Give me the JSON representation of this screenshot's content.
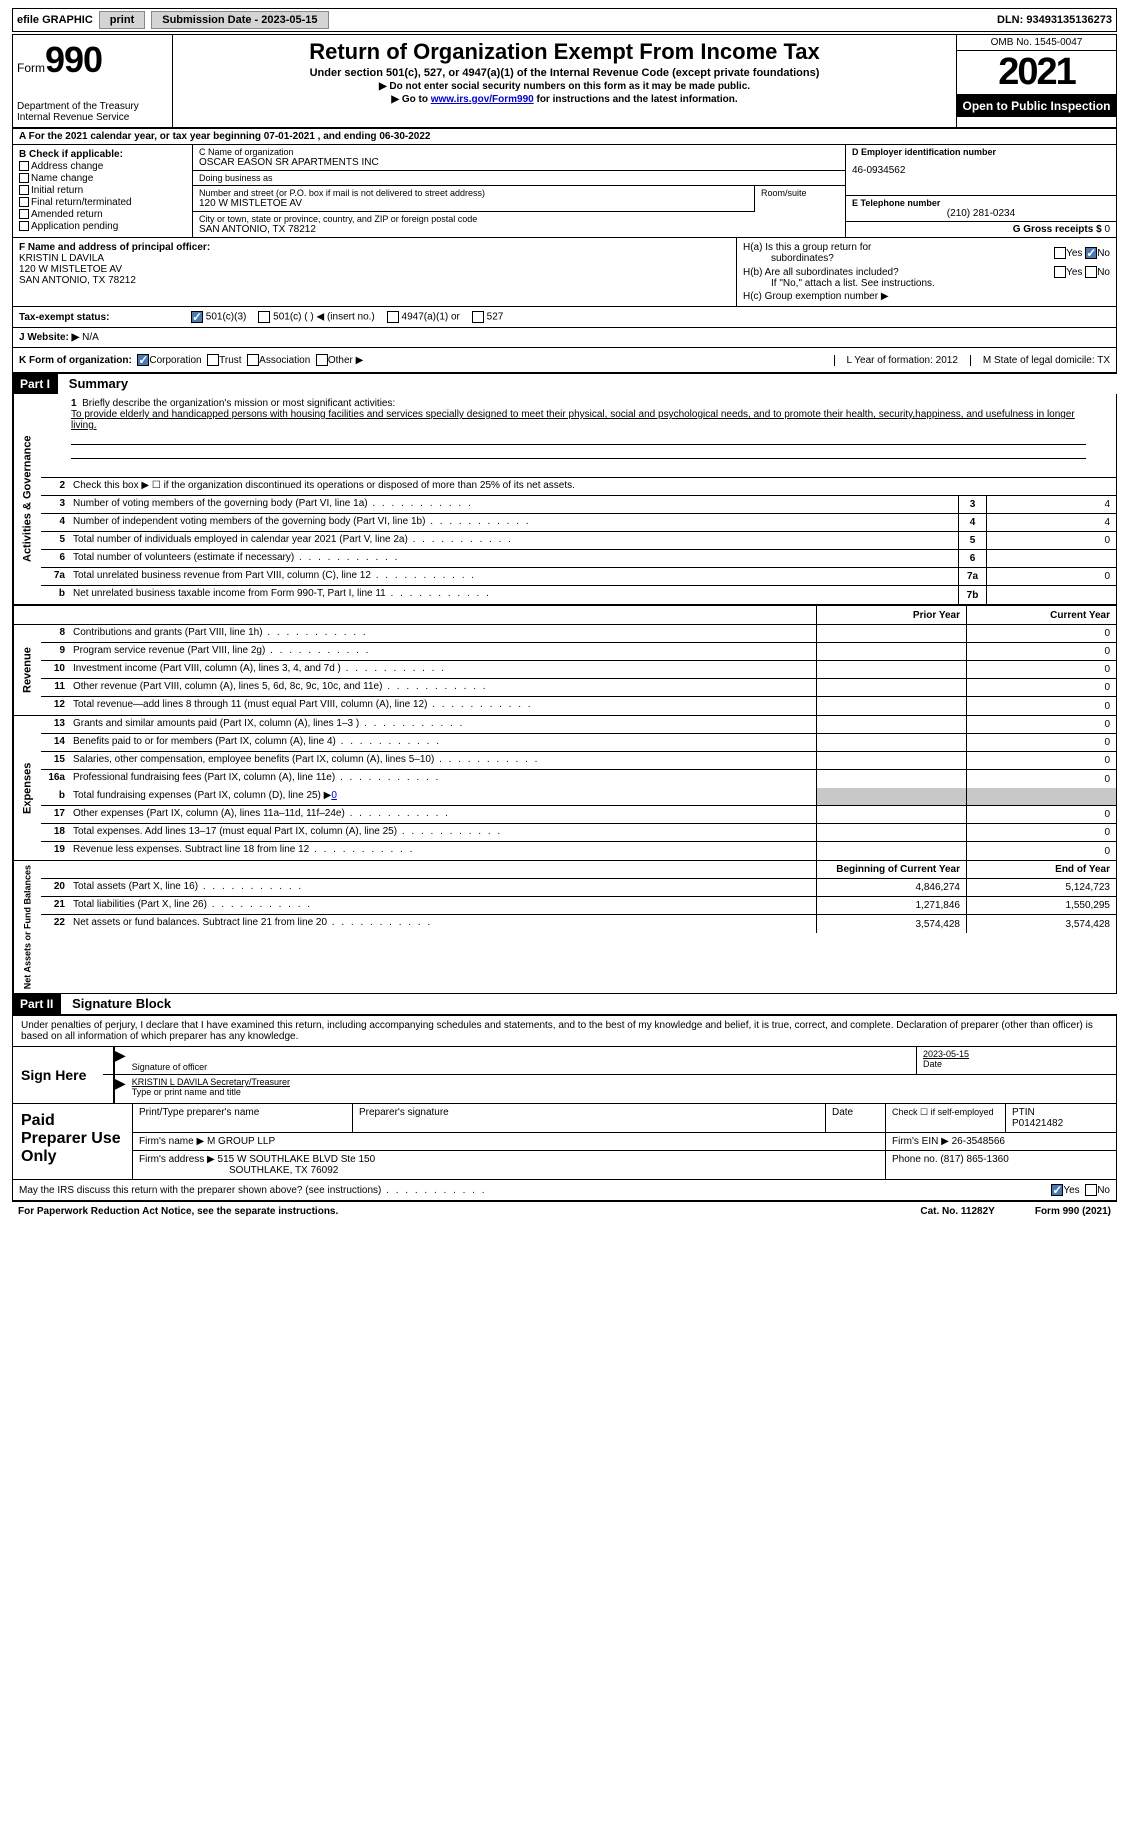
{
  "toolbar": {
    "efile": "efile GRAPHIC",
    "print": "print",
    "sub_label": "Submission Date - 2023-05-15",
    "dln": "DLN: 93493135136273"
  },
  "header": {
    "form_label": "Form",
    "form_no": "990",
    "dept": "Department of the Treasury\nInternal Revenue Service",
    "title": "Return of Organization Exempt From Income Tax",
    "sub": "Under section 501(c), 527, or 4947(a)(1) of the Internal Revenue Code (except private foundations)",
    "note1": "▶ Do not enter social security numbers on this form as it may be made public.",
    "note2_pre": "▶ Go to ",
    "note2_link": "www.irs.gov/Form990",
    "note2_post": " for instructions and the latest information.",
    "omb": "OMB No. 1545-0047",
    "year": "2021",
    "open": "Open to Public Inspection"
  },
  "row_a": "A For the 2021 calendar year, or tax year beginning 07-01-2021   , and ending 06-30-2022",
  "col_b": {
    "hdr": "B Check if applicable:",
    "items": [
      "Address change",
      "Name change",
      "Initial return",
      "Final return/terminated",
      "Amended return",
      "Application pending"
    ]
  },
  "col_c": {
    "name_lbl": "C Name of organization",
    "name": "OSCAR EASON SR APARTMENTS INC",
    "dba_lbl": "Doing business as",
    "addr_lbl": "Number and street (or P.O. box if mail is not delivered to street address)",
    "addr": "120 W MISTLETOE AV",
    "room_lbl": "Room/suite",
    "city_lbl": "City or town, state or province, country, and ZIP or foreign postal code",
    "city": "SAN ANTONIO, TX  78212"
  },
  "col_d": {
    "lbl": "D Employer identification number",
    "val": "46-0934562"
  },
  "col_e": {
    "lbl": "E Telephone number",
    "val": "(210) 281-0234"
  },
  "col_g": {
    "lbl": "G Gross receipts $",
    "val": "0"
  },
  "col_f": {
    "lbl": "F  Name and address of principal officer:",
    "name": "KRISTIN L DAVILA",
    "addr1": "120 W MISTLETOE AV",
    "addr2": "SAN ANTONIO, TX  78212"
  },
  "col_h": {
    "ha1": "H(a)  Is this a group return for",
    "ha2": "subordinates?",
    "hb1": "H(b)  Are all subordinates included?",
    "hb2": "If \"No,\" attach a list. See instructions.",
    "hc": "H(c)  Group exemption number ▶",
    "yes": "Yes",
    "no": "No"
  },
  "tax": {
    "lbl": "Tax-exempt status:",
    "o1": "501(c)(3)",
    "o2": "501(c) (  ) ◀ (insert no.)",
    "o3": "4947(a)(1) or",
    "o4": "527"
  },
  "row_j": {
    "lbl": "J   Website: ▶",
    "val": "N/A"
  },
  "row_k": {
    "lbl": "K Form of organization:",
    "o1": "Corporation",
    "o2": "Trust",
    "o3": "Association",
    "o4": "Other ▶",
    "l": "L Year of formation: 2012",
    "m": "M State of legal domicile: TX"
  },
  "part1": {
    "hdr": "Part I",
    "title": "Summary",
    "side_ag": "Activities & Governance",
    "line1_lbl": "Briefly describe the organization's mission or most significant activities:",
    "line1_txt": "To provide elderly and handicapped persons with housing facilities and services specially designed to meet their physical, social and psychological needs, and to promote their health, security,happiness, and usefulness in longer living.",
    "line2": "Check this box ▶ ☐  if the organization discontinued its operations or disposed of more than 25% of its net assets.",
    "lines_ag": [
      {
        "n": "3",
        "t": "Number of voting members of the governing body (Part VI, line 1a)",
        "b": "3",
        "v": "4"
      },
      {
        "n": "4",
        "t": "Number of independent voting members of the governing body (Part VI, line 1b)",
        "b": "4",
        "v": "4"
      },
      {
        "n": "5",
        "t": "Total number of individuals employed in calendar year 2021 (Part V, line 2a)",
        "b": "5",
        "v": "0"
      },
      {
        "n": "6",
        "t": "Total number of volunteers (estimate if necessary)",
        "b": "6",
        "v": ""
      },
      {
        "n": "7a",
        "t": "Total unrelated business revenue from Part VIII, column (C), line 12",
        "b": "7a",
        "v": "0"
      },
      {
        "n": "b",
        "t": "Net unrelated business taxable income from Form 990-T, Part I, line 11",
        "b": "7b",
        "v": ""
      }
    ],
    "py": "Prior Year",
    "cy": "Current Year",
    "side_rev": "Revenue",
    "lines_rev": [
      {
        "n": "8",
        "t": "Contributions and grants (Part VIII, line 1h)",
        "p": "",
        "c": "0"
      },
      {
        "n": "9",
        "t": "Program service revenue (Part VIII, line 2g)",
        "p": "",
        "c": "0"
      },
      {
        "n": "10",
        "t": "Investment income (Part VIII, column (A), lines 3, 4, and 7d )",
        "p": "",
        "c": "0"
      },
      {
        "n": "11",
        "t": "Other revenue (Part VIII, column (A), lines 5, 6d, 8c, 9c, 10c, and 11e)",
        "p": "",
        "c": "0"
      },
      {
        "n": "12",
        "t": "Total revenue—add lines 8 through 11 (must equal Part VIII, column (A), line 12)",
        "p": "",
        "c": "0"
      }
    ],
    "side_exp": "Expenses",
    "lines_exp": [
      {
        "n": "13",
        "t": "Grants and similar amounts paid (Part IX, column (A), lines 1–3 )",
        "p": "",
        "c": "0"
      },
      {
        "n": "14",
        "t": "Benefits paid to or for members (Part IX, column (A), line 4)",
        "p": "",
        "c": "0"
      },
      {
        "n": "15",
        "t": "Salaries, other compensation, employee benefits (Part IX, column (A), lines 5–10)",
        "p": "",
        "c": "0"
      },
      {
        "n": "16a",
        "t": "Professional fundraising fees (Part IX, column (A), line 11e)",
        "p": "",
        "c": "0"
      }
    ],
    "line16b": "Total fundraising expenses (Part IX, column (D), line 25) ▶",
    "line16b_val": "0",
    "lines_exp2": [
      {
        "n": "17",
        "t": "Other expenses (Part IX, column (A), lines 11a–11d, 11f–24e)",
        "p": "",
        "c": "0"
      },
      {
        "n": "18",
        "t": "Total expenses. Add lines 13–17 (must equal Part IX, column (A), line 25)",
        "p": "",
        "c": "0"
      },
      {
        "n": "19",
        "t": "Revenue less expenses. Subtract line 18 from line 12",
        "p": "",
        "c": "0"
      }
    ],
    "side_na": "Net Assets or Fund Balances",
    "bcy": "Beginning of Current Year",
    "eoy": "End of Year",
    "lines_na": [
      {
        "n": "20",
        "t": "Total assets (Part X, line 16)",
        "p": "4,846,274",
        "c": "5,124,723"
      },
      {
        "n": "21",
        "t": "Total liabilities (Part X, line 26)",
        "p": "1,271,846",
        "c": "1,550,295"
      },
      {
        "n": "22",
        "t": "Net assets or fund balances. Subtract line 21 from line 20",
        "p": "3,574,428",
        "c": "3,574,428"
      }
    ]
  },
  "part2": {
    "hdr": "Part II",
    "title": "Signature Block",
    "decl": "Under penalties of perjury, I declare that I have examined this return, including accompanying schedules and statements, and to the best of my knowledge and belief, it is true, correct, and complete. Declaration of preparer (other than officer) is based on all information of which preparer has any knowledge.",
    "sign_here": "Sign Here",
    "sig_lbl": "Signature of officer",
    "date_lbl": "Date",
    "date_val": "2023-05-15",
    "name_lbl": "Type or print name and title",
    "name_val": "KRISTIN L DAVILA  Secretary/Treasurer",
    "paid": "Paid Preparer Use Only",
    "prep_name_lbl": "Print/Type preparer's name",
    "prep_sig_lbl": "Preparer's signature",
    "check_lbl": "Check ☐ if self-employed",
    "ptin_lbl": "PTIN",
    "ptin": "P01421482",
    "firm_name_lbl": "Firm's name    ▶",
    "firm_name": "M GROUP LLP",
    "firm_ein_lbl": "Firm's EIN ▶",
    "firm_ein": "26-3548566",
    "firm_addr_lbl": "Firm's address ▶",
    "firm_addr1": "515 W SOUTHLAKE BLVD Ste 150",
    "firm_addr2": "SOUTHLAKE, TX  76092",
    "phone_lbl": "Phone no.",
    "phone": "(817) 865-1360",
    "may": "May the IRS discuss this return with the preparer shown above? (see instructions)",
    "yes": "Yes",
    "no": "No"
  },
  "footer": {
    "l": "For Paperwork Reduction Act Notice, see the separate instructions.",
    "m": "Cat. No. 11282Y",
    "r": "Form 990 (2021)"
  }
}
